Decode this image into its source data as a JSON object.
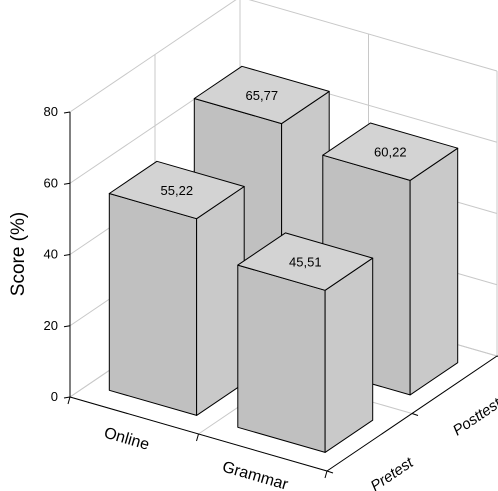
{
  "chart_data": {
    "type": "bar",
    "style": "3d",
    "ylabel": "Score (%)",
    "ylim": [
      0,
      80
    ],
    "yticks": [
      0,
      20,
      40,
      60,
      80
    ],
    "categories": [
      "Online",
      "Grammar"
    ],
    "series_axis_labels": [
      "Pretest",
      "Posttest"
    ],
    "series": [
      {
        "name": "Pretest",
        "values": [
          55.22,
          45.51
        ],
        "labels": [
          "55,22",
          "45,51"
        ]
      },
      {
        "name": "Posttest",
        "values": [
          65.77,
          60.22
        ],
        "labels": [
          "65,77",
          "60,22"
        ]
      }
    ],
    "grid": true,
    "colors": {
      "bar": "#c0c0c0",
      "bar_side": "#c9c9c9",
      "bar_top": "#d3d3d3",
      "grid": "#c8c8c8"
    }
  }
}
